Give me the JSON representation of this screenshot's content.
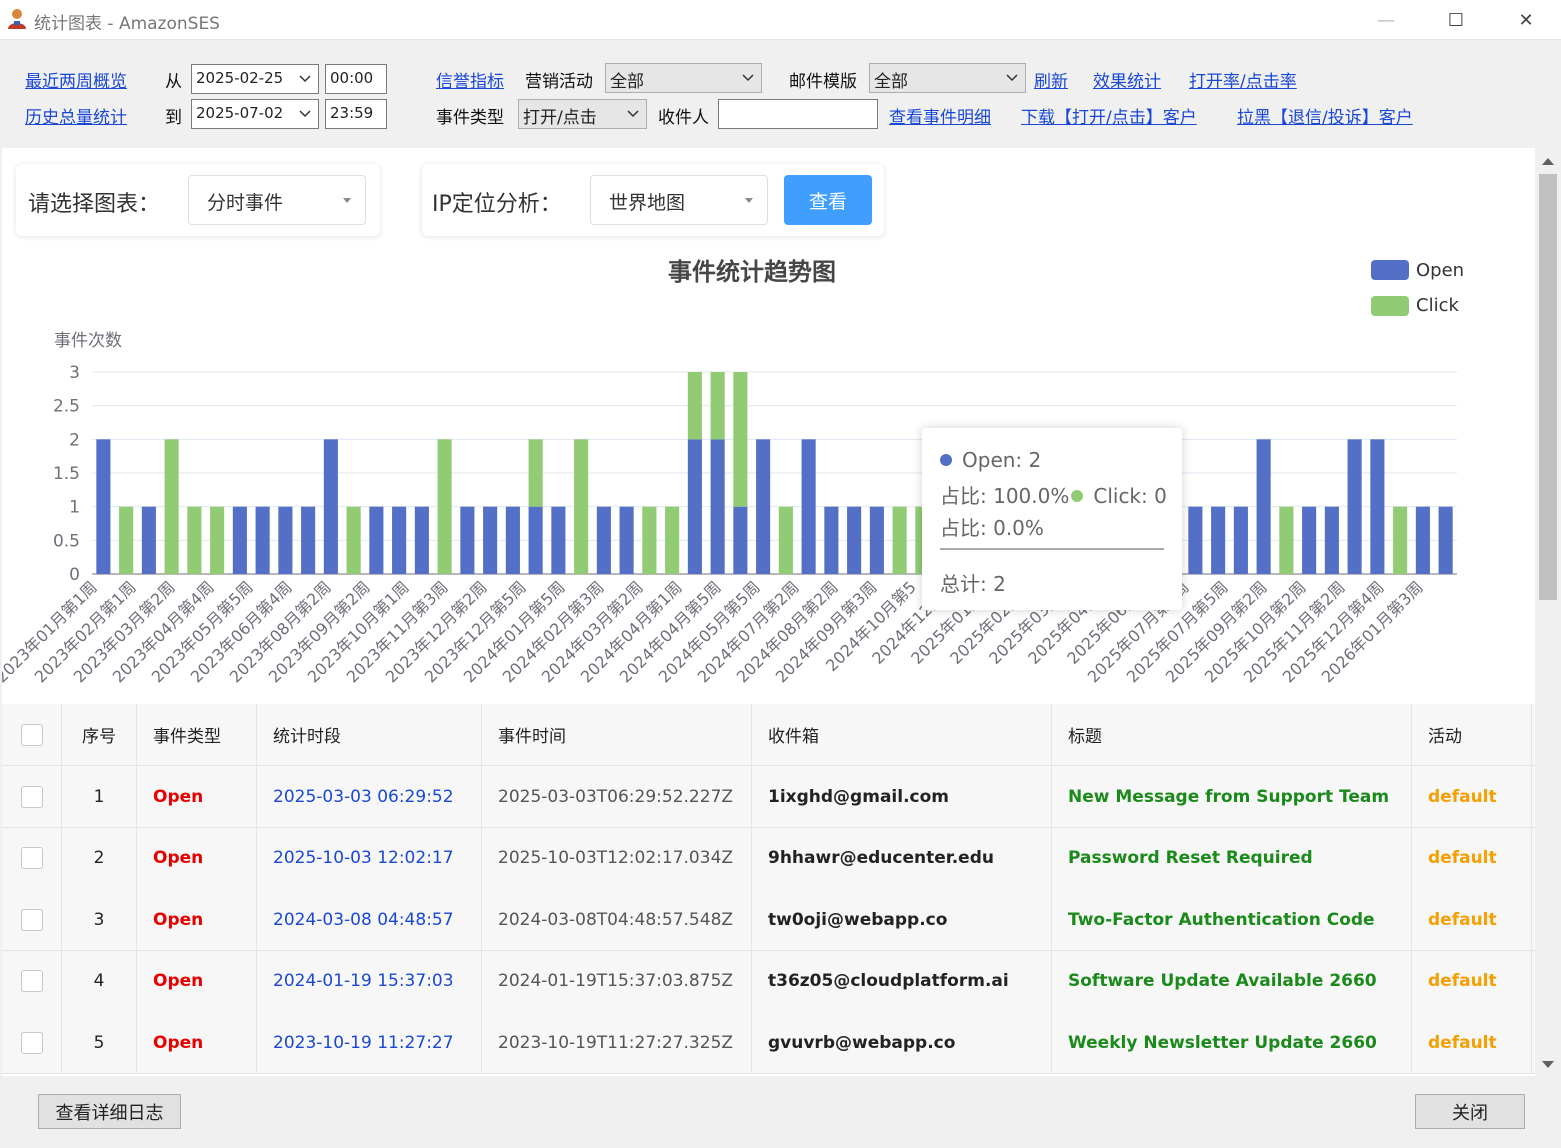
{
  "window": {
    "title": "统计图表 - AmazonSES",
    "minimize": "—",
    "maximize": "☐",
    "close": "✕"
  },
  "toolbar": {
    "recent_two_weeks": "最近两周概览",
    "history_total": "历史总量统计",
    "from_label": "从",
    "to_label": "到",
    "from_date": "2025-02-25",
    "from_time": "00:00",
    "to_date": "2025-07-02",
    "to_time": "23:59",
    "reputation": "信誉指标",
    "campaign_label": "营销活动",
    "campaign_value": "全部",
    "template_label": "邮件模版",
    "template_value": "全部",
    "refresh": "刷新",
    "effect_stats": "效果统计",
    "open_click_rate": "打开率/点击率",
    "event_type_label": "事件类型",
    "event_type_value": "打开/点击",
    "recipient_label": "收件人",
    "recipient_value": "",
    "view_event_detail": "查看事件明细",
    "download_open_click": "下载【打开/点击】客户",
    "blacklist_bounce": "拉黑【退信/投诉】客户"
  },
  "filters": {
    "chart_label": "请选择图表：",
    "chart_value": "分时事件",
    "ip_label": "IP定位分析：",
    "ip_value": "世界地图",
    "query_button": "查看"
  },
  "chart_data": {
    "type": "bar",
    "stacked": true,
    "title": "事件统计趋势图",
    "ylabel": "事件次数",
    "ylim": [
      0,
      3
    ],
    "yticks": [
      "0",
      "0.5",
      "1",
      "1.5",
      "2",
      "2.5",
      "3"
    ],
    "legend_position": "top-right",
    "series": [
      {
        "name": "Open",
        "color": "#5470c6",
        "values": [
          2,
          0,
          1,
          0,
          0,
          0,
          1,
          1,
          1,
          1,
          2,
          0,
          1,
          1,
          1,
          0,
          1,
          1,
          1,
          1,
          1,
          0,
          1,
          1,
          0,
          0,
          2,
          2,
          1,
          2,
          0,
          2,
          1,
          1,
          1,
          0,
          0,
          1,
          1,
          1,
          1,
          0,
          0,
          1,
          1,
          1,
          2,
          1,
          1,
          1,
          1,
          2,
          0,
          1,
          1,
          2,
          2,
          0,
          1,
          1
        ]
      },
      {
        "name": "Click",
        "color": "#91cc75",
        "values": [
          0,
          1,
          0,
          2,
          1,
          1,
          0,
          0,
          0,
          0,
          0,
          1,
          0,
          0,
          0,
          2,
          0,
          0,
          0,
          1,
          0,
          2,
          0,
          0,
          1,
          1,
          1,
          1,
          2,
          0,
          1,
          0,
          0,
          0,
          0,
          1,
          1,
          0,
          0,
          0,
          0,
          2,
          1,
          0,
          0,
          0,
          0,
          0,
          0,
          0,
          0,
          0,
          1,
          0,
          0,
          0,
          0,
          1,
          0,
          0
        ]
      }
    ],
    "x_tick_labels": [
      "2023年01月第1周",
      "2023年02月第1周",
      "2023年03月第2周",
      "2023年04月第4周",
      "2023年05月第5周",
      "2023年06月第4周",
      "2023年08月第2周",
      "2023年09月第2周",
      "2023年10月第1周",
      "2023年11月第3周",
      "2023年12月第2周",
      "2023年12月第5周",
      "2024年01月第5周",
      "2024年02月第3周",
      "2024年03月第2周",
      "2024年04月第1周",
      "2024年04月第5周",
      "2024年05月第5周",
      "2024年07月第2周",
      "2024年08月第2周",
      "2024年09月第3周",
      "2024年10月第5",
      "2024年12月第",
      "2025年01月第",
      "2025年02月第",
      "2025年03月第",
      "2025年04月第",
      "2025年06月第",
      "2025年07月第2周",
      "2025年07月第5周",
      "2025年09月第2周",
      "2025年10月第2周",
      "2025年11月第2周",
      "2025年12月第4周",
      "2026年01月第3周"
    ],
    "tooltip": {
      "open_line": "Open: 2",
      "open_ratio": "占比: 100.0%",
      "click_line": "Click: 0",
      "click_ratio": "占比: 0.0%",
      "total": "总计: 2"
    }
  },
  "table": {
    "headers": [
      "序号",
      "事件类型",
      "统计时段",
      "事件时间",
      "收件箱",
      "标题",
      "活动"
    ],
    "rows": [
      {
        "no": "1",
        "type": "Open",
        "period": "2025-03-03 06:29:52",
        "time": "2025-03-03T06:29:52.227Z",
        "inbox": "1ixghd@gmail.com",
        "subject": "New Message from Support Team",
        "campaign": "default"
      },
      {
        "no": "2",
        "type": "Open",
        "period": "2025-10-03 12:02:17",
        "time": "2025-10-03T12:02:17.034Z",
        "inbox": "9hhawr@educenter.edu",
        "subject": "Password Reset Required",
        "campaign": "default"
      },
      {
        "no": "3",
        "type": "Open",
        "period": "2024-03-08 04:48:57",
        "time": "2024-03-08T04:48:57.548Z",
        "inbox": "tw0oji@webapp.co",
        "subject": "Two-Factor Authentication Code",
        "campaign": "default"
      },
      {
        "no": "4",
        "type": "Open",
        "period": "2024-01-19 15:37:03",
        "time": "2024-01-19T15:37:03.875Z",
        "inbox": "t36z05@cloudplatform.ai",
        "subject": "Software Update Available 2660",
        "campaign": "default"
      },
      {
        "no": "5",
        "type": "Open",
        "period": "2023-10-19 11:27:27",
        "time": "2023-10-19T11:27:27.325Z",
        "inbox": "gvuvrb@webapp.co",
        "subject": "Weekly Newsletter Update 2660",
        "campaign": "default"
      }
    ]
  },
  "colors": {
    "type": "#e60000",
    "period": "#1a48d6",
    "subject": "#1a8a1a",
    "campaign": "#f5a000"
  },
  "footer": {
    "view_log": "查看详细日志",
    "close": "关闭"
  }
}
